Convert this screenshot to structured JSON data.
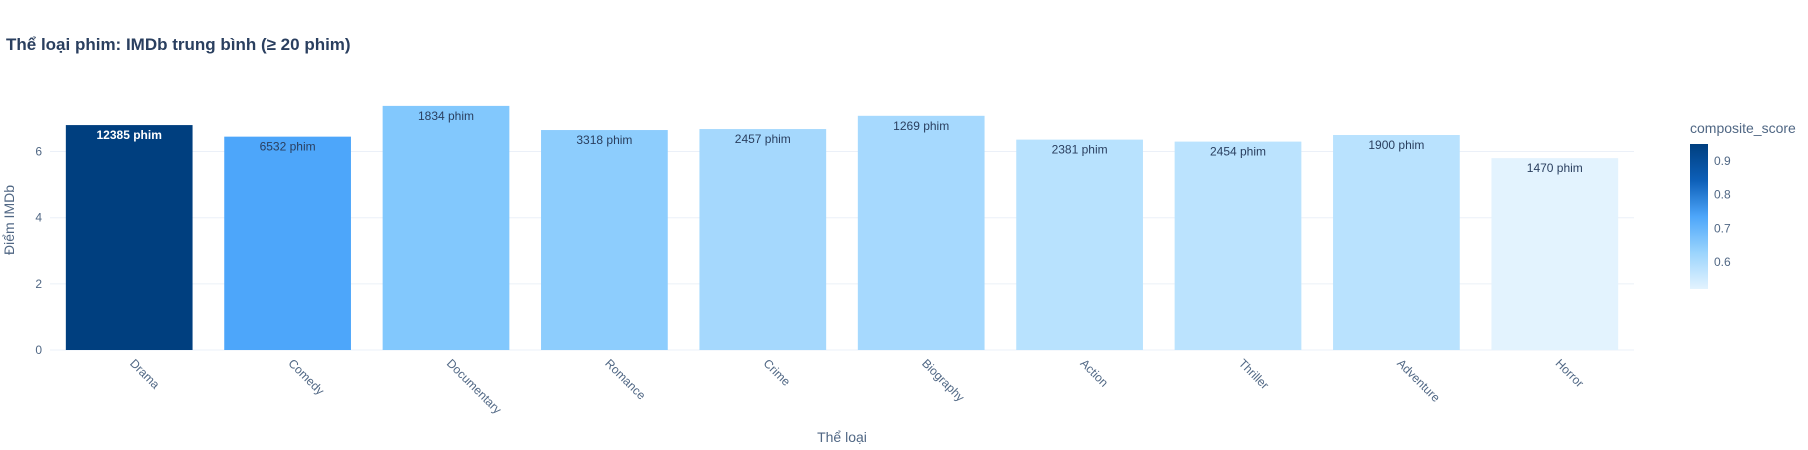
{
  "chart_data": {
    "type": "bar",
    "title": "Thể loại phim: IMDb trung bình (≥ 20 phim)",
    "xlabel": "Thể loại",
    "ylabel": "Điểm IMDb",
    "ylim": [
      0,
      7.8
    ],
    "yticks": [
      0,
      2,
      4,
      6
    ],
    "grid": true,
    "categories": [
      "Drama",
      "Comedy",
      "Documentary",
      "Romance",
      "Crime",
      "Biography",
      "Action",
      "Thriller",
      "Adventure",
      "Horror"
    ],
    "values": [
      6.8,
      6.45,
      7.38,
      6.65,
      6.68,
      7.08,
      6.36,
      6.3,
      6.5,
      5.8
    ],
    "bar_labels": [
      "12385 phim",
      "6532 phim",
      "1834 phim",
      "3318 phim",
      "2457 phim",
      "1269 phim",
      "2381 phim",
      "2454 phim",
      "1900 phim",
      "1470 phim"
    ],
    "colors": [
      "#003f7f",
      "#4da6fa",
      "#82c8fd",
      "#8dcdfd",
      "#a5d8fd",
      "#a6d9fe",
      "#b8e2fe",
      "#bbe3fe",
      "#b9e2fe",
      "#e3f3fe"
    ],
    "label_colors": [
      "#ffffff",
      "#2a3f5f",
      "#2a3f5f",
      "#2a3f5f",
      "#2a3f5f",
      "#2a3f5f",
      "#2a3f5f",
      "#2a3f5f",
      "#2a3f5f",
      "#2a3f5f"
    ],
    "colorbar": {
      "title": "composite_score",
      "ticks": [
        "0.9",
        "0.8",
        "0.7",
        "0.6"
      ],
      "tick_values": [
        0.9,
        0.8,
        0.7,
        0.6
      ],
      "range": [
        0.52,
        0.95
      ],
      "colors": [
        "#e3f3fe",
        "#9ad4fd",
        "#4da6fa",
        "#0d5fb8",
        "#003f7f"
      ]
    }
  }
}
